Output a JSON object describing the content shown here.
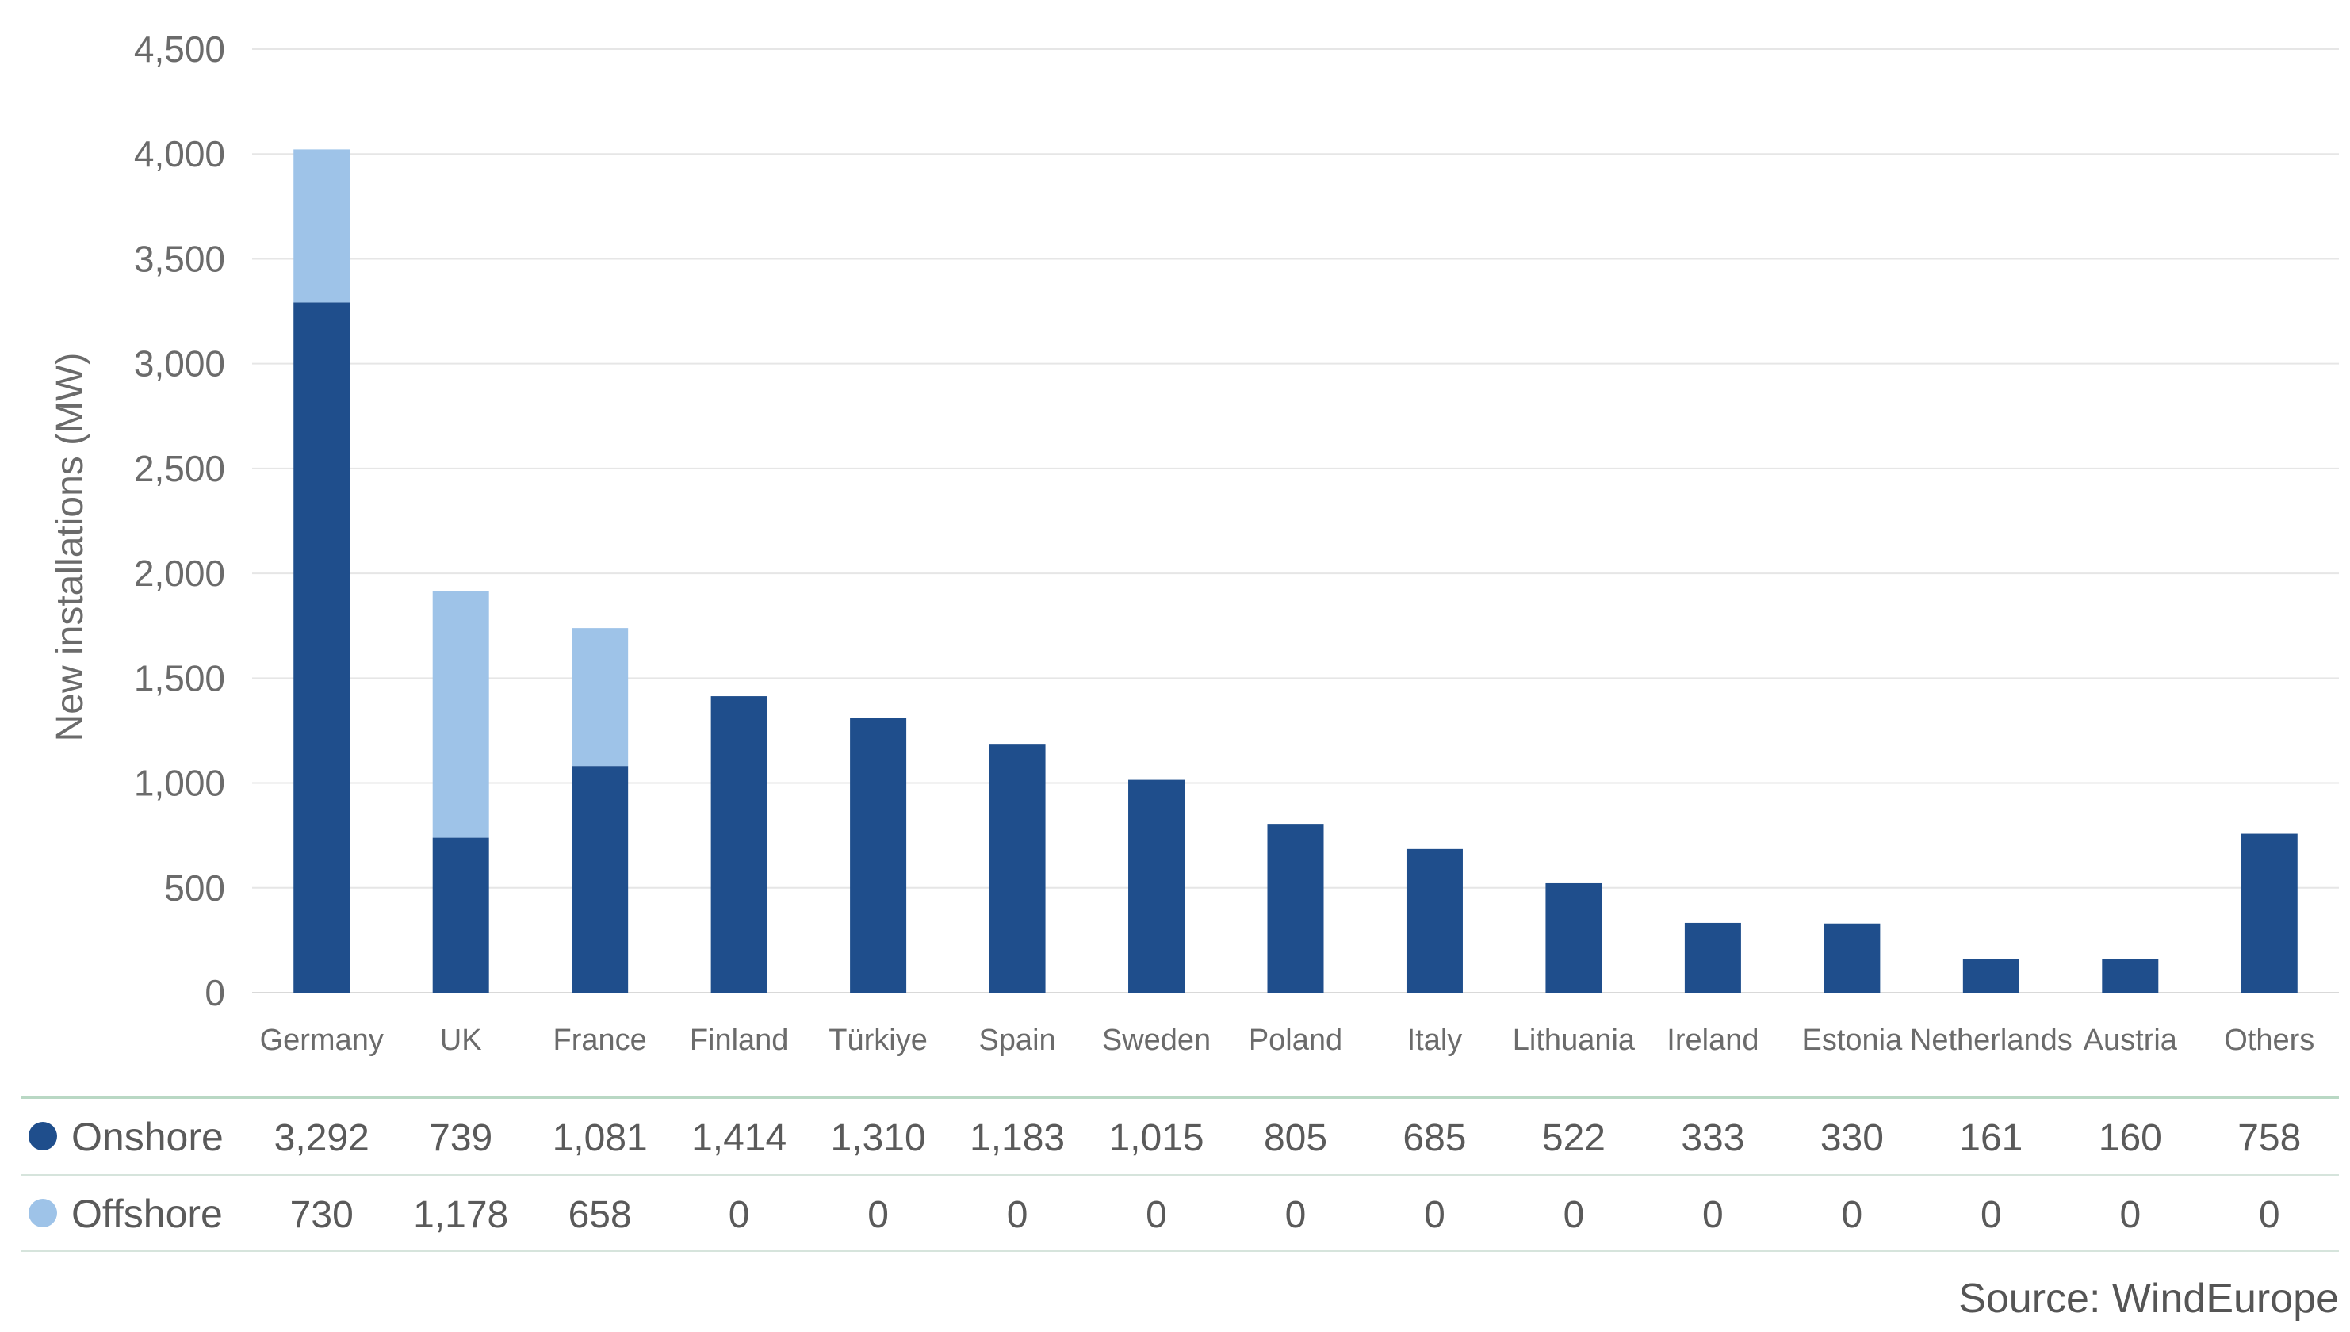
{
  "chart_data": {
    "type": "bar",
    "stacked": true,
    "title": "",
    "xlabel": "",
    "ylabel": "New installations (MW)",
    "ylim": [
      0,
      4500
    ],
    "yticks": [
      0,
      500,
      1000,
      1500,
      2000,
      2500,
      3000,
      3500,
      4000,
      4500
    ],
    "ytick_labels": [
      "0",
      "500",
      "1,000",
      "1,500",
      "2,000",
      "2,500",
      "3,000",
      "3,500",
      "4,000",
      "4,500"
    ],
    "grid": true,
    "legend": "data-table",
    "categories": [
      "Germany",
      "UK",
      "France",
      "Finland",
      "Türkiye",
      "Spain",
      "Sweden",
      "Poland",
      "Italy",
      "Lithuania",
      "Ireland",
      "Estonia",
      "Netherlands",
      "Austria",
      "Others"
    ],
    "series": [
      {
        "name": "Onshore",
        "color": "#1f4e8c",
        "values": [
          3292,
          739,
          1081,
          1414,
          1310,
          1183,
          1015,
          805,
          685,
          522,
          333,
          330,
          161,
          160,
          758
        ],
        "labels": [
          "3,292",
          "739",
          "1,081",
          "1,414",
          "1,310",
          "1,183",
          "1,015",
          "805",
          "685",
          "522",
          "333",
          "330",
          "161",
          "160",
          "758"
        ]
      },
      {
        "name": "Offshore",
        "color": "#9ec3e8",
        "values": [
          730,
          1178,
          658,
          0,
          0,
          0,
          0,
          0,
          0,
          0,
          0,
          0,
          0,
          0,
          0
        ],
        "labels": [
          "730",
          "1,178",
          "658",
          "0",
          "0",
          "0",
          "0",
          "0",
          "0",
          "0",
          "0",
          "0",
          "0",
          "0",
          "0"
        ]
      }
    ],
    "source": "Source: WindEurope",
    "colors": {
      "axis_text": "#6b6b6b",
      "table_text": "#5a5a5a",
      "grid": "#e6e6e6",
      "table_top_rule": "#b9d8c4",
      "table_rule": "#d6e4dc"
    }
  }
}
